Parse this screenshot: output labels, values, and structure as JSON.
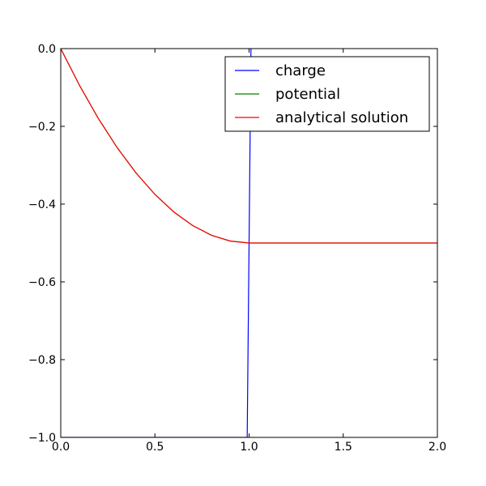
{
  "colors": {
    "charge": "#0000ff",
    "potential": "#008000",
    "analytical": "#ff0000",
    "axes": "#000000",
    "background": "#ffffff"
  },
  "chart_data": {
    "type": "line",
    "title": "",
    "xlabel": "",
    "ylabel": "",
    "xlim": [
      0.0,
      2.0
    ],
    "ylim": [
      -1.0,
      0.0
    ],
    "grid": false,
    "legend_position": "top-right",
    "x_ticks": [
      "0.0",
      "0.5",
      "1.0",
      "1.5",
      "2.0"
    ],
    "y_ticks": [
      "0.0",
      "−0.2",
      "−0.4",
      "−0.6",
      "−0.8",
      "−1.0"
    ],
    "x_tick_values": [
      0.0,
      0.5,
      1.0,
      1.5,
      2.0
    ],
    "y_tick_values": [
      0.0,
      -0.2,
      -0.4,
      -0.6,
      -0.8,
      -1.0
    ],
    "series": [
      {
        "name": "charge",
        "color": "#0000ff",
        "x": [
          0.0,
          0.99,
          1.0,
          1.01,
          1.02
        ],
        "y": [
          -1.0,
          -1.0,
          -0.5,
          0.0,
          0.3
        ]
      },
      {
        "name": "potential",
        "color": "#008000",
        "x": [
          0.0,
          0.1,
          0.2,
          0.3,
          0.4,
          0.5,
          0.6,
          0.7,
          0.8,
          0.9,
          1.0,
          1.25,
          1.5,
          1.75,
          2.0
        ],
        "y": [
          0.0,
          -0.095,
          -0.18,
          -0.255,
          -0.32,
          -0.375,
          -0.42,
          -0.455,
          -0.48,
          -0.495,
          -0.5,
          -0.5,
          -0.5,
          -0.5,
          -0.5
        ]
      },
      {
        "name": "analytical solution",
        "color": "#ff0000",
        "x": [
          0.0,
          0.1,
          0.2,
          0.3,
          0.4,
          0.5,
          0.6,
          0.7,
          0.8,
          0.9,
          1.0,
          1.25,
          1.5,
          1.75,
          2.0
        ],
        "y": [
          0.0,
          -0.095,
          -0.18,
          -0.255,
          -0.32,
          -0.375,
          -0.42,
          -0.455,
          -0.48,
          -0.495,
          -0.5,
          -0.5,
          -0.5,
          -0.5,
          -0.5
        ]
      }
    ]
  }
}
